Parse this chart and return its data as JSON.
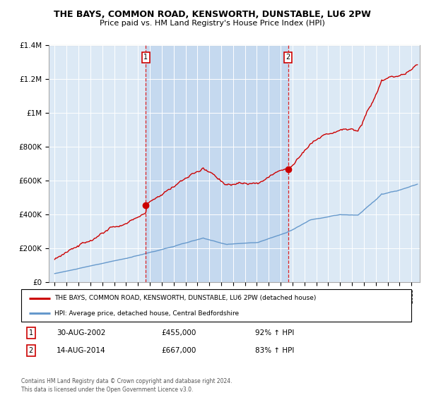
{
  "title1": "THE BAYS, COMMON ROAD, KENSWORTH, DUNSTABLE, LU6 2PW",
  "title2": "Price paid vs. HM Land Registry's House Price Index (HPI)",
  "legend_label1": "THE BAYS, COMMON ROAD, KENSWORTH, DUNSTABLE, LU6 2PW (detached house)",
  "legend_label2": "HPI: Average price, detached house, Central Bedfordshire",
  "sale1_date": "30-AUG-2002",
  "sale1_price": "£455,000",
  "sale1_hpi": "92% ↑ HPI",
  "sale2_date": "14-AUG-2014",
  "sale2_price": "£667,000",
  "sale2_hpi": "83% ↑ HPI",
  "footer": "Contains HM Land Registry data © Crown copyright and database right 2024.\nThis data is licensed under the Open Government Licence v3.0.",
  "background_color": "#dce9f5",
  "highlight_color": "#c5d9ef",
  "line1_color": "#cc0000",
  "line2_color": "#6699cc",
  "ylim": [
    0,
    1400000
  ],
  "xlim_start": 1994.5,
  "xlim_end": 2025.7,
  "sale1_x": 2002.667,
  "sale1_y": 455000,
  "sale2_x": 2014.625,
  "sale2_y": 667000,
  "yticks": [
    0,
    200000,
    400000,
    600000,
    800000,
    1000000,
    1200000,
    1400000
  ]
}
